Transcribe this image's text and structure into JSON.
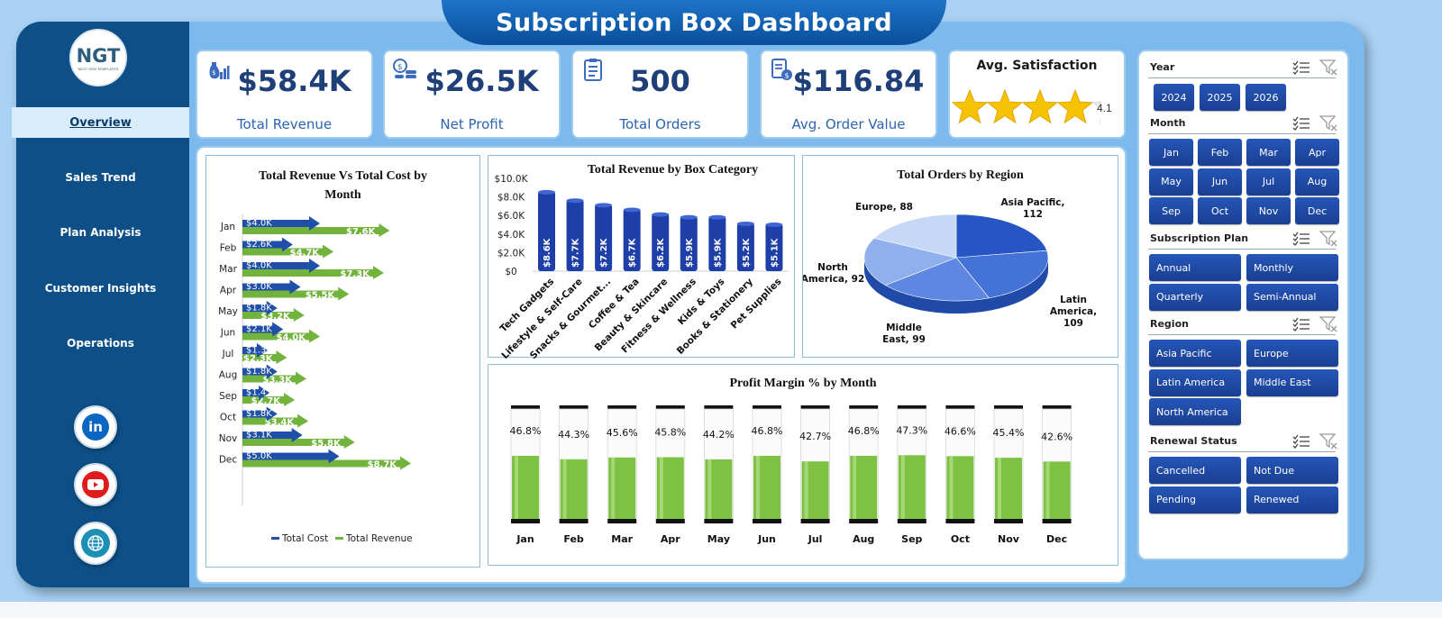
{
  "title": "Subscription Box Dashboard",
  "logo": {
    "text": "NGT",
    "subtext": "NEXT GEN TEMPLATES"
  },
  "nav": [
    {
      "label": "Overview",
      "active": true
    },
    {
      "label": "Sales Trend",
      "active": false
    },
    {
      "label": "Plan Analysis",
      "active": false
    },
    {
      "label": "Customer Insights",
      "active": false
    },
    {
      "label": "Operations",
      "active": false
    }
  ],
  "social": [
    {
      "icon": "linkedin-icon",
      "glyph": "in",
      "color": "#0a66c2"
    },
    {
      "icon": "youtube-icon",
      "color": "#e01b1b"
    },
    {
      "icon": "globe-icon",
      "color": "#1c8fb7"
    }
  ],
  "kpis": [
    {
      "value": "$58.4K",
      "label": "Total Revenue",
      "icon": "money-bag-icon"
    },
    {
      "value": "$26.5K",
      "label": "Net Profit",
      "icon": "coins-icon"
    },
    {
      "value": "500",
      "label": "Total Orders",
      "icon": "clipboard-icon"
    },
    {
      "value": "$116.84",
      "label": "Avg. Order Value",
      "icon": "receipt-icon"
    }
  ],
  "satisfaction": {
    "label": "Avg. Satisfaction",
    "value": "4.1",
    "rating": 4.1,
    "max": 5
  },
  "chart_data": [
    {
      "type": "bar",
      "orientation": "horizontal",
      "title": "Total Revenue Vs Total Cost by Month",
      "categories": [
        "Jan",
        "Feb",
        "Mar",
        "Apr",
        "May",
        "Jun",
        "Jul",
        "Aug",
        "Sep",
        "Oct",
        "Nov",
        "Dec"
      ],
      "series": [
        {
          "name": "Total Cost",
          "values": [
            4.0,
            2.6,
            4.0,
            3.0,
            1.8,
            2.1,
            1.3,
            1.8,
            1.4,
            1.8,
            3.1,
            5.0
          ],
          "labels": [
            "$4.0K",
            "$2.6K",
            "$4.0K",
            "$3.0K",
            "$1.8K",
            "$2.1K",
            "$1.3",
            "$1.8K",
            "$1.4",
            "$1.8K",
            "$3.1K",
            "$5.0K"
          ],
          "color": "#1f4fa8"
        },
        {
          "name": "Total Revenue",
          "values": [
            7.6,
            4.7,
            7.3,
            5.5,
            3.2,
            4.0,
            2.3,
            3.3,
            2.7,
            3.4,
            5.8,
            8.7
          ],
          "labels": [
            "$7.6K",
            "$4.7K",
            "$7.3K",
            "$5.5K",
            "$3.2K",
            "$4.0K",
            "$2.3K",
            "$3.3K",
            "$2.7K",
            "$3.4K",
            "$5.8K",
            "$8.7K"
          ],
          "color": "#71b33c"
        }
      ],
      "legend": "bottom"
    },
    {
      "type": "bar",
      "title": "Total Revenue  by Box Category",
      "categories": [
        "Tech Gadgets",
        "Lifestyle & Self-Care",
        "Snacks & Gourmet...",
        "Coffee & Tea",
        "Beauty & Skincare",
        "Fitness & Wellness",
        "Kids & Toys",
        "Books & Stationery",
        "Pet Supplies"
      ],
      "values": [
        8.6,
        7.7,
        7.2,
        6.7,
        6.2,
        5.9,
        5.9,
        5.2,
        5.1
      ],
      "value_labels": [
        "$8.6K",
        "$7.7K",
        "$7.2K",
        "$6.7K",
        "$6.2K",
        "$5.9K",
        "$5.9K",
        "$5.2K",
        "$5.1K"
      ],
      "yticks": [
        "$0",
        "$2.0K",
        "$4.0K",
        "$6.0K",
        "$8.0K",
        "$10.0K"
      ],
      "ylim": [
        0,
        10
      ],
      "color": "#1f3fa8"
    },
    {
      "type": "pie",
      "title": "Total Orders by Region",
      "slices": [
        {
          "label": "Asia Pacific,",
          "label2": "112",
          "value": 112,
          "color": "#2756c4"
        },
        {
          "label": "Latin",
          "label2": "America,",
          "label3": "109",
          "value": 109,
          "color": "#4472d6"
        },
        {
          "label": "Middle",
          "label2": "East, 99",
          "value": 99,
          "color": "#5d87e0"
        },
        {
          "label": "North",
          "label2": "America, 92",
          "value": 92,
          "color": "#8fb0ec"
        },
        {
          "label": "Europe, 88",
          "value": 88,
          "color": "#c7d8f7"
        }
      ]
    },
    {
      "type": "bar",
      "title": "Profit Margin % by Month",
      "categories": [
        "Jan",
        "Feb",
        "Mar",
        "Apr",
        "May",
        "Jun",
        "Jul",
        "Aug",
        "Sep",
        "Oct",
        "Nov",
        "Dec"
      ],
      "values": [
        46.8,
        44.3,
        45.6,
        45.8,
        44.2,
        46.8,
        42.7,
        46.8,
        47.3,
        46.6,
        45.4,
        42.6
      ],
      "value_labels": [
        "46.8%",
        "44.3%",
        "45.6%",
        "45.8%",
        "44.2%",
        "46.8%",
        "42.7%",
        "46.8%",
        "47.3%",
        "46.6%",
        "45.4%",
        "42.6%"
      ],
      "ylim": [
        0,
        100
      ],
      "color": "#7dc242"
    }
  ],
  "filters": [
    {
      "title": "Year",
      "options": [
        "2024",
        "2025",
        "2026"
      ]
    },
    {
      "title": "Month",
      "options": [
        "Jan",
        "Feb",
        "Mar",
        "Apr",
        "May",
        "Jun",
        "Jul",
        "Aug",
        "Sep",
        "Oct",
        "Nov",
        "Dec"
      ]
    },
    {
      "title": "Subscription Plan",
      "options": [
        "Annual",
        "Monthly",
        "Quarterly",
        "Semi-Annual"
      ]
    },
    {
      "title": "Region",
      "options": [
        "Asia Pacific",
        "Europe",
        "Latin America",
        "Middle East",
        "North America"
      ]
    },
    {
      "title": "Renewal Status",
      "options": [
        "Cancelled",
        "Not Due",
        "Pending",
        "Renewed"
      ]
    }
  ]
}
